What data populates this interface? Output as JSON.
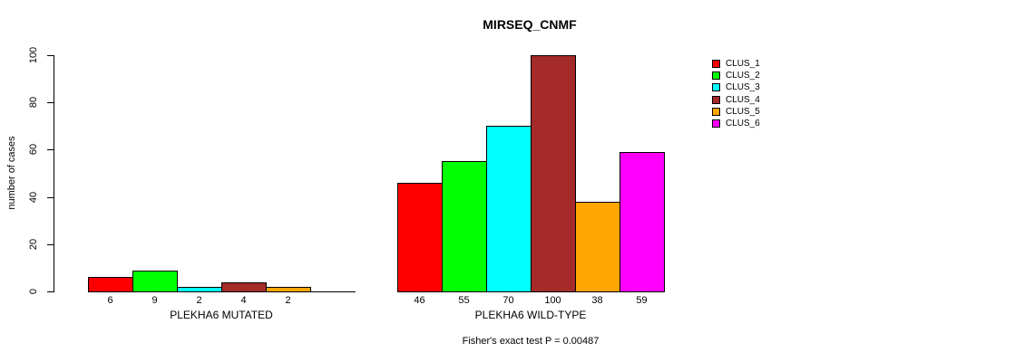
{
  "chart_data": {
    "type": "bar",
    "title": "MIRSEQ_CNMF",
    "ylabel": "number of cases",
    "ylim": [
      0,
      100
    ],
    "yticks": [
      0,
      20,
      40,
      60,
      80,
      100
    ],
    "grid": false,
    "legend_position": "top-right",
    "legend": [
      {
        "label": "CLUS_1",
        "color": "#FF0000"
      },
      {
        "label": "CLUS_2",
        "color": "#00FF00"
      },
      {
        "label": "CLUS_3",
        "color": "#00FFFF"
      },
      {
        "label": "CLUS_4",
        "color": "#A52A2A"
      },
      {
        "label": "CLUS_5",
        "color": "#FFA500"
      },
      {
        "label": "CLUS_6",
        "color": "#FF00FF"
      }
    ],
    "series_colors": [
      "#FF0000",
      "#00FF00",
      "#00FFFF",
      "#A52A2A",
      "#FFA500",
      "#FF00FF"
    ],
    "clusters": [
      "CLUS_1",
      "CLUS_2",
      "CLUS_3",
      "CLUS_4",
      "CLUS_5",
      "CLUS_6"
    ],
    "groups": [
      {
        "label": "PLEKHA6 MUTATED",
        "values": [
          6,
          9,
          2,
          4,
          2,
          0
        ],
        "bar_labels": [
          "6",
          "9",
          "2",
          "4",
          "2",
          ""
        ]
      },
      {
        "label": "PLEKHA6 WILD-TYPE",
        "values": [
          46,
          55,
          70,
          100,
          38,
          59
        ],
        "bar_labels": [
          "46",
          "55",
          "70",
          "100",
          "38",
          "59"
        ]
      }
    ],
    "annotation": "Fisher's exact test P = 0.00487"
  }
}
